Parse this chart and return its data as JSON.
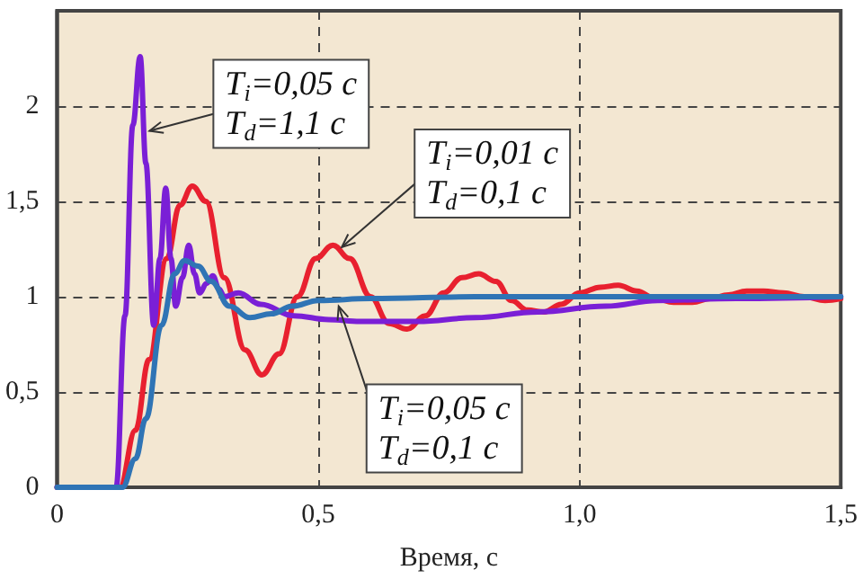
{
  "chart_data": {
    "type": "line",
    "xlabel": "Время, с",
    "xlim": [
      0,
      1.5
    ],
    "xticks": [
      0,
      {
        "value": 0.5,
        "label": "0,5"
      },
      {
        "value": 1,
        "label": "1,0"
      },
      {
        "value": 1.5,
        "label": "1,5"
      }
    ],
    "ylim": [
      0,
      2.5
    ],
    "yticks": [
      0,
      {
        "value": 0.5,
        "label": "0,5"
      },
      1,
      {
        "value": 1.5,
        "label": "1,5"
      },
      2
    ],
    "grid": true,
    "marker": "none",
    "line_style": "solid",
    "series": [
      {
        "color": "#e8202f",
        "x": [
          0,
          0.12,
          0.15,
          0.176,
          0.21,
          0.235,
          0.259,
          0.285,
          0.32,
          0.36,
          0.392,
          0.425,
          0.46,
          0.495,
          0.528,
          0.56,
          0.6,
          0.635,
          0.67,
          0.705,
          0.74,
          0.775,
          0.807,
          0.84,
          0.87,
          0.9,
          0.932,
          0.965,
          1.0,
          1.04,
          1.074,
          1.11,
          1.145,
          1.18,
          1.216,
          1.25,
          1.285,
          1.32,
          1.352,
          1.39,
          1.43,
          1.47,
          1.5
        ],
        "values": [
          0,
          0,
          0.3,
          0.67,
          1.2,
          1.48,
          1.58,
          1.5,
          1.1,
          0.72,
          0.59,
          0.7,
          1.0,
          1.2,
          1.27,
          1.2,
          1.0,
          0.86,
          0.83,
          0.9,
          1.02,
          1.1,
          1.12,
          1.08,
          0.98,
          0.93,
          0.92,
          0.96,
          1.02,
          1.05,
          1.06,
          1.03,
          0.99,
          0.97,
          0.97,
          0.99,
          1.01,
          1.03,
          1.03,
          1.02,
          1.0,
          0.98,
          0.99
        ]
      },
      {
        "color": "#7a1fd6",
        "x": [
          0,
          0.113,
          0.13,
          0.145,
          0.159,
          0.17,
          0.185,
          0.197,
          0.208,
          0.218,
          0.227,
          0.24,
          0.252,
          0.263,
          0.273,
          0.286,
          0.298,
          0.31,
          0.32,
          0.347,
          0.39,
          0.453,
          0.52,
          0.58,
          0.69,
          0.8,
          0.92,
          1.05,
          1.15,
          1.3,
          1.5
        ],
        "values": [
          0,
          0,
          0.9,
          1.9,
          2.26,
          1.7,
          0.85,
          1.2,
          1.57,
          1.2,
          0.95,
          1.1,
          1.27,
          1.12,
          1.02,
          1.07,
          1.11,
          1.04,
          1.0,
          1.02,
          0.96,
          0.9,
          0.88,
          0.87,
          0.87,
          0.89,
          0.92,
          0.95,
          0.98,
          0.99,
          1.0
        ]
      },
      {
        "color": "#2f74b5",
        "x": [
          0,
          0.125,
          0.15,
          0.17,
          0.2,
          0.225,
          0.244,
          0.27,
          0.295,
          0.33,
          0.369,
          0.41,
          0.45,
          0.5,
          0.6,
          0.8,
          1.0,
          1.5
        ],
        "values": [
          0,
          0,
          0.15,
          0.36,
          0.85,
          1.12,
          1.19,
          1.16,
          1.08,
          0.95,
          0.89,
          0.91,
          0.95,
          0.98,
          0.99,
          1.0,
          1.0,
          1.0
        ]
      }
    ],
    "annotations": [
      {
        "text": "T$_{i}$=0,05 с\nT$_{d}$=1,1 с",
        "x": 0.177,
        "y": 1.87
      },
      {
        "text": "T$_{i}$=0,01 с\nT$_{d}$=0,1 с",
        "x": 0.545,
        "y": 1.26
      },
      {
        "text": "T$_{i}$=0,05 с\nT$_{d}$=0,1 с",
        "x": 0.539,
        "y": 0.95
      }
    ]
  }
}
